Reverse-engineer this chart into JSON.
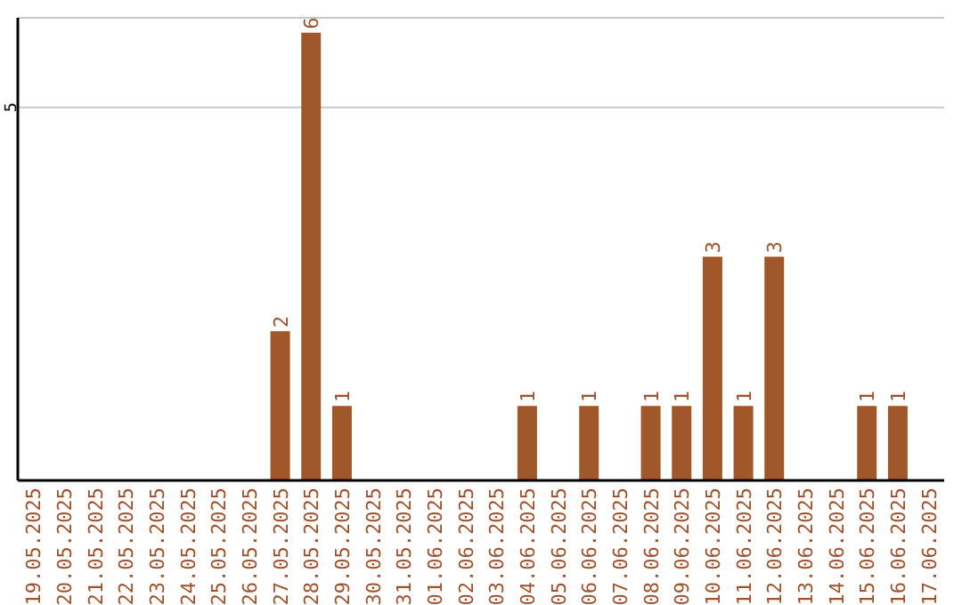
{
  "chart_data": {
    "type": "bar",
    "categories": [
      "19.05.2025",
      "20.05.2025",
      "21.05.2025",
      "22.05.2025",
      "23.05.2025",
      "24.05.2025",
      "25.05.2025",
      "26.05.2025",
      "27.05.2025",
      "28.05.2025",
      "29.05.2025",
      "30.05.2025",
      "31.05.2025",
      "01.06.2025",
      "02.06.2025",
      "03.06.2025",
      "04.06.2025",
      "05.06.2025",
      "06.06.2025",
      "07.06.2025",
      "08.06.2025",
      "09.06.2025",
      "10.06.2025",
      "11.06.2025",
      "12.06.2025",
      "13.06.2025",
      "14.06.2025",
      "15.06.2025",
      "16.06.2025",
      "17.06.2025"
    ],
    "values": [
      0,
      0,
      0,
      0,
      0,
      0,
      0,
      0,
      2,
      6,
      1,
      0,
      0,
      0,
      0,
      0,
      1,
      0,
      1,
      0,
      1,
      1,
      3,
      1,
      3,
      0,
      0,
      1,
      1,
      0
    ],
    "value_labels": [
      null,
      null,
      null,
      null,
      null,
      null,
      null,
      null,
      "2",
      "6",
      "1",
      null,
      null,
      null,
      null,
      null,
      "1",
      null,
      "1",
      null,
      "1",
      "1",
      "3",
      "1",
      "3",
      null,
      null,
      "1",
      "1",
      null
    ],
    "color": "#a0572a",
    "ylim": [
      0,
      6.2
    ],
    "yticks": [
      5
    ],
    "grid": "y"
  }
}
